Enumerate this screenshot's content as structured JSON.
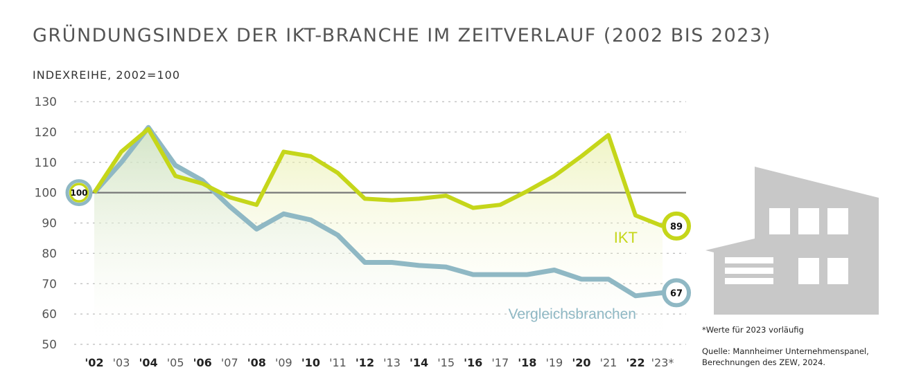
{
  "title": "GRÜNDUNGSINDEX DER IKT-BRANCHE IM ZEITVERLAUF (2002 BIS 2023)",
  "subtitle": "INDEXREIHE, 2002=100",
  "footnote": "*Werte für 2023 vorläufig",
  "source_line1": "Quelle: Mannheimer Unternehmenspanel,",
  "source_line2": "Berechnungen des ZEW, 2024.",
  "colors": {
    "ikt": "#c5d61a",
    "vergleich": "#8fb8c4",
    "building": "#c8c8c8",
    "grid": "#bbbbbb",
    "baseline": "#777777"
  },
  "icons": [
    "building-icon"
  ],
  "chart_data": {
    "type": "line",
    "categories": [
      "'02",
      "'03",
      "'04",
      "'05",
      "'06",
      "'07",
      "'08",
      "'09",
      "'10",
      "'11",
      "'12",
      "'13",
      "'14",
      "'15",
      "'16",
      "'17",
      "'18",
      "'19",
      "'20",
      "'21",
      "'22",
      "'23*"
    ],
    "bold_categories": [
      "'02",
      "'04",
      "'06",
      "'08",
      "'10",
      "'12",
      "'14",
      "'16",
      "'18",
      "'20",
      "'22"
    ],
    "ylim": [
      50,
      130
    ],
    "yticks": [
      50,
      60,
      70,
      80,
      90,
      100,
      110,
      120,
      130
    ],
    "baseline": 100,
    "grid": true,
    "series": [
      {
        "name": "IKT",
        "values": [
          100,
          113.5,
          121,
          105.5,
          103,
          98.5,
          96,
          113.5,
          112,
          106.5,
          98,
          97.5,
          98,
          99,
          95,
          96,
          100.5,
          105.5,
          112,
          119,
          92.5,
          89
        ],
        "end_label": "89"
      },
      {
        "name": "Vergleichsbranchen",
        "values": [
          100,
          110,
          121.5,
          109,
          104,
          95.5,
          88,
          93,
          91,
          86,
          77,
          77,
          76,
          75.5,
          73,
          73,
          73,
          74.5,
          71.5,
          71.5,
          66,
          67
        ],
        "end_label": "67"
      }
    ],
    "start_label": "100"
  }
}
